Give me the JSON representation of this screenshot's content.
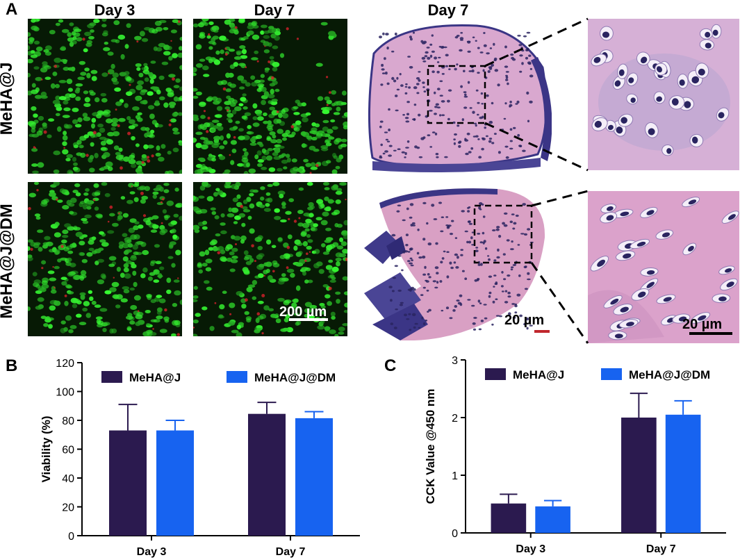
{
  "panel_a": {
    "letter": "A",
    "columns": [
      "Day 3",
      "Day 7",
      "Day 7"
    ],
    "rows": [
      "MeHA@J",
      "MeHA@J@DM"
    ],
    "scale_bars": [
      "200 µm",
      "20 µm",
      "20 µm"
    ],
    "colors": {
      "live": "#37e83a",
      "dead": "#d4202a",
      "he_tissue": "#dba0c8",
      "he_nuclei": "#2a2460",
      "he_dark": "#3a3585"
    }
  },
  "chart_data": [
    {
      "type": "bar",
      "panel": "B",
      "categories": [
        "Day 3",
        "Day 7"
      ],
      "series": [
        {
          "name": "MeHA@J",
          "values": [
            73,
            84.5
          ],
          "errors": [
            18,
            8
          ],
          "color": "#2b1a4f"
        },
        {
          "name": "MeHA@J@DM",
          "values": [
            73,
            81.5
          ],
          "errors": [
            7,
            4.5
          ],
          "color": "#1763f0"
        }
      ],
      "ylabel": "Viability (%)",
      "ylim": [
        0,
        120
      ],
      "yticks": [
        "0",
        "20",
        "40",
        "60",
        "80",
        "100",
        "120"
      ],
      "legend": "top",
      "grid": false
    },
    {
      "type": "bar",
      "panel": "C",
      "categories": [
        "Day 3",
        "Day 7"
      ],
      "series": [
        {
          "name": "MeHA@J",
          "values": [
            0.51,
            2.0
          ],
          "errors": [
            0.16,
            0.42
          ],
          "color": "#2b1a4f"
        },
        {
          "name": "MeHA@J@DM",
          "values": [
            0.46,
            2.05
          ],
          "errors": [
            0.1,
            0.24
          ],
          "color": "#1763f0"
        }
      ],
      "ylabel": "CCK Value @450 nm",
      "ylim": [
        0,
        3
      ],
      "yticks": [
        "0",
        "1",
        "2",
        "3"
      ],
      "legend": "top",
      "grid": false
    }
  ]
}
